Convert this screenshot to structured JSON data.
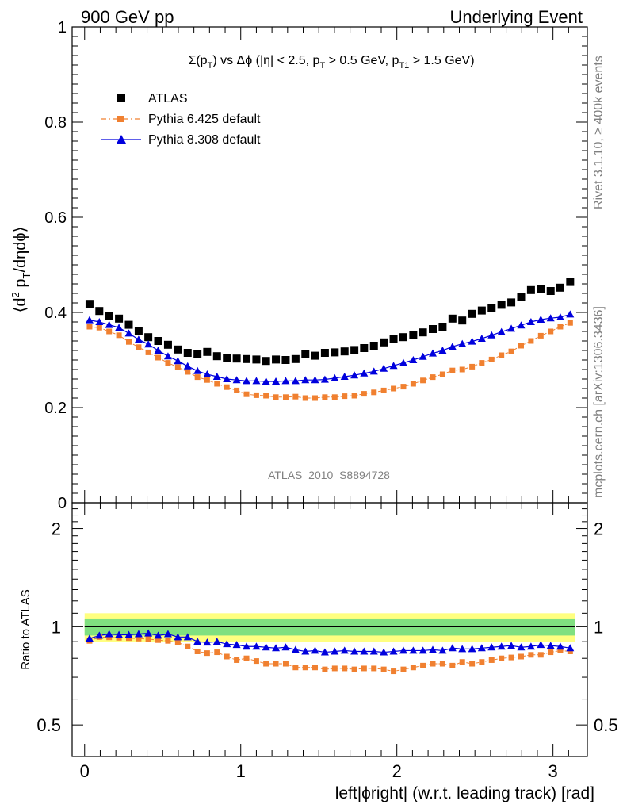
{
  "header": {
    "left": "900 GeV pp",
    "right": "Underlying Event"
  },
  "side_labels": {
    "rivet": "Rivet 3.1.10, ≥ 400k events",
    "mcplots": "mcplots.cern.ch [arXiv:1306.3436]"
  },
  "watermark": "ATLAS_2010_S8894728",
  "colors": {
    "atlas": "#000000",
    "py6": "#f08030",
    "py8": "#0000dd",
    "band_outer": "#ffff80",
    "band_inner": "#80e080"
  },
  "chart_data": [
    {
      "type": "scatter",
      "title": "Σ(pT) vs Δϕ (|η| < 2.5, pT > 0.5 GeV, pT1 > 1.5 GeV)",
      "ylabel": "⟨d² pT/dηdϕ⟩",
      "xlim": [
        -0.08,
        3.22
      ],
      "ylim": [
        0,
        1
      ],
      "yticks": [
        "0",
        "0.2",
        "0.4",
        "0.6",
        "0.8",
        "1"
      ],
      "legend_position": "top-left",
      "x": [
        0.0314,
        0.0942,
        0.157,
        0.22,
        0.283,
        0.346,
        0.408,
        0.471,
        0.534,
        0.597,
        0.66,
        0.723,
        0.785,
        0.848,
        0.911,
        0.974,
        1.037,
        1.1,
        1.162,
        1.225,
        1.288,
        1.351,
        1.414,
        1.476,
        1.539,
        1.602,
        1.665,
        1.728,
        1.79,
        1.853,
        1.916,
        1.979,
        2.042,
        2.105,
        2.167,
        2.23,
        2.293,
        2.356,
        2.419,
        2.482,
        2.544,
        2.607,
        2.67,
        2.733,
        2.796,
        2.859,
        2.922,
        2.985,
        3.047,
        3.11
      ],
      "series": [
        {
          "name": "ATLAS",
          "values": [
            0.418,
            0.403,
            0.393,
            0.387,
            0.374,
            0.36,
            0.348,
            0.34,
            0.332,
            0.322,
            0.315,
            0.312,
            0.317,
            0.308,
            0.305,
            0.303,
            0.302,
            0.301,
            0.298,
            0.301,
            0.3,
            0.302,
            0.312,
            0.309,
            0.315,
            0.316,
            0.318,
            0.321,
            0.325,
            0.33,
            0.337,
            0.345,
            0.348,
            0.353,
            0.358,
            0.365,
            0.37,
            0.387,
            0.383,
            0.397,
            0.404,
            0.41,
            0.416,
            0.421,
            0.433,
            0.447,
            0.449,
            0.445,
            0.452,
            0.464
          ]
        },
        {
          "name": "Pythia 6.425 default",
          "values": [
            0.37,
            0.368,
            0.36,
            0.352,
            0.338,
            0.327,
            0.316,
            0.305,
            0.294,
            0.285,
            0.275,
            0.264,
            0.258,
            0.25,
            0.243,
            0.236,
            0.228,
            0.226,
            0.225,
            0.222,
            0.222,
            0.223,
            0.22,
            0.22,
            0.222,
            0.222,
            0.224,
            0.225,
            0.229,
            0.232,
            0.236,
            0.24,
            0.244,
            0.25,
            0.257,
            0.264,
            0.27,
            0.278,
            0.28,
            0.286,
            0.294,
            0.301,
            0.31,
            0.318,
            0.33,
            0.34,
            0.351,
            0.36,
            0.37,
            0.378
          ]
        },
        {
          "name": "Pythia 8.308 default",
          "values": [
            0.384,
            0.38,
            0.374,
            0.368,
            0.356,
            0.343,
            0.333,
            0.32,
            0.308,
            0.298,
            0.287,
            0.277,
            0.27,
            0.265,
            0.26,
            0.258,
            0.256,
            0.256,
            0.255,
            0.255,
            0.256,
            0.256,
            0.258,
            0.258,
            0.259,
            0.262,
            0.265,
            0.268,
            0.272,
            0.276,
            0.282,
            0.288,
            0.294,
            0.3,
            0.307,
            0.314,
            0.32,
            0.328,
            0.334,
            0.339,
            0.345,
            0.352,
            0.359,
            0.366,
            0.373,
            0.38,
            0.385,
            0.388,
            0.39,
            0.396
          ]
        }
      ]
    },
    {
      "type": "scatter",
      "ylabel": "Ratio to ATLAS",
      "xlabel": "left|ϕright| (w.r.t. leading track) [rad]",
      "xlim": [
        -0.08,
        3.22
      ],
      "xticks": [
        "0",
        "1",
        "2",
        "3"
      ],
      "ylim": [
        0.4,
        2.4
      ],
      "log_scale_y": true,
      "yticks": [
        "0.5",
        "1",
        "2"
      ],
      "band_outer": [
        0.9,
        1.1
      ],
      "band_inner": [
        0.94,
        1.06
      ],
      "series": [
        {
          "name": "Pythia 6.425 default",
          "values": [
            0.905,
            0.93,
            0.928,
            0.925,
            0.923,
            0.92,
            0.917,
            0.91,
            0.905,
            0.895,
            0.87,
            0.84,
            0.83,
            0.835,
            0.81,
            0.79,
            0.8,
            0.785,
            0.77,
            0.77,
            0.77,
            0.75,
            0.75,
            0.75,
            0.74,
            0.745,
            0.745,
            0.74,
            0.745,
            0.745,
            0.74,
            0.73,
            0.74,
            0.75,
            0.76,
            0.77,
            0.77,
            0.76,
            0.78,
            0.77,
            0.78,
            0.79,
            0.8,
            0.805,
            0.81,
            0.82,
            0.82,
            0.835,
            0.845,
            0.84
          ]
        },
        {
          "name": "Pythia 8.308 default",
          "values": [
            0.92,
            0.94,
            0.95,
            0.945,
            0.945,
            0.95,
            0.955,
            0.94,
            0.95,
            0.93,
            0.93,
            0.9,
            0.895,
            0.9,
            0.885,
            0.88,
            0.87,
            0.87,
            0.865,
            0.86,
            0.865,
            0.85,
            0.84,
            0.845,
            0.835,
            0.84,
            0.845,
            0.84,
            0.84,
            0.84,
            0.835,
            0.84,
            0.845,
            0.845,
            0.845,
            0.85,
            0.845,
            0.86,
            0.855,
            0.855,
            0.86,
            0.865,
            0.87,
            0.875,
            0.865,
            0.87,
            0.88,
            0.875,
            0.87,
            0.86
          ]
        }
      ]
    }
  ]
}
